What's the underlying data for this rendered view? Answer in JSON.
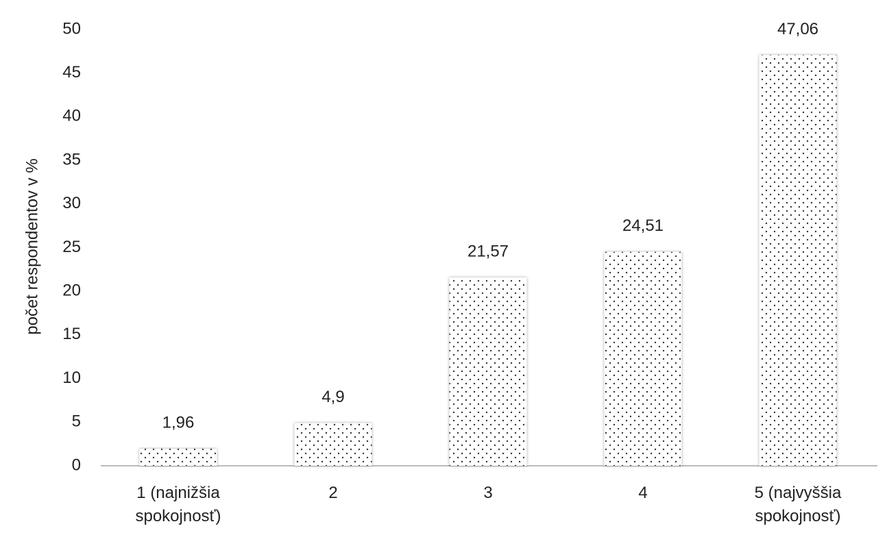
{
  "chart_data": {
    "type": "bar",
    "y_axis_label": "počet respondentov v %",
    "categories": [
      "1 (najnižšia spokojnosť)",
      "2",
      "3",
      "4",
      "5 (najvyššia spokojnosť)"
    ],
    "values": [
      1.96,
      4.9,
      21.57,
      24.51,
      47.06
    ],
    "value_labels": [
      "1,96",
      "4,9",
      "21,57",
      "24,51",
      "47,06"
    ],
    "color": "#333333",
    "ylim": [
      0,
      50
    ],
    "yticks": [
      0,
      5,
      10,
      15,
      20,
      25,
      30,
      35,
      40,
      45,
      50
    ],
    "grid": false
  }
}
